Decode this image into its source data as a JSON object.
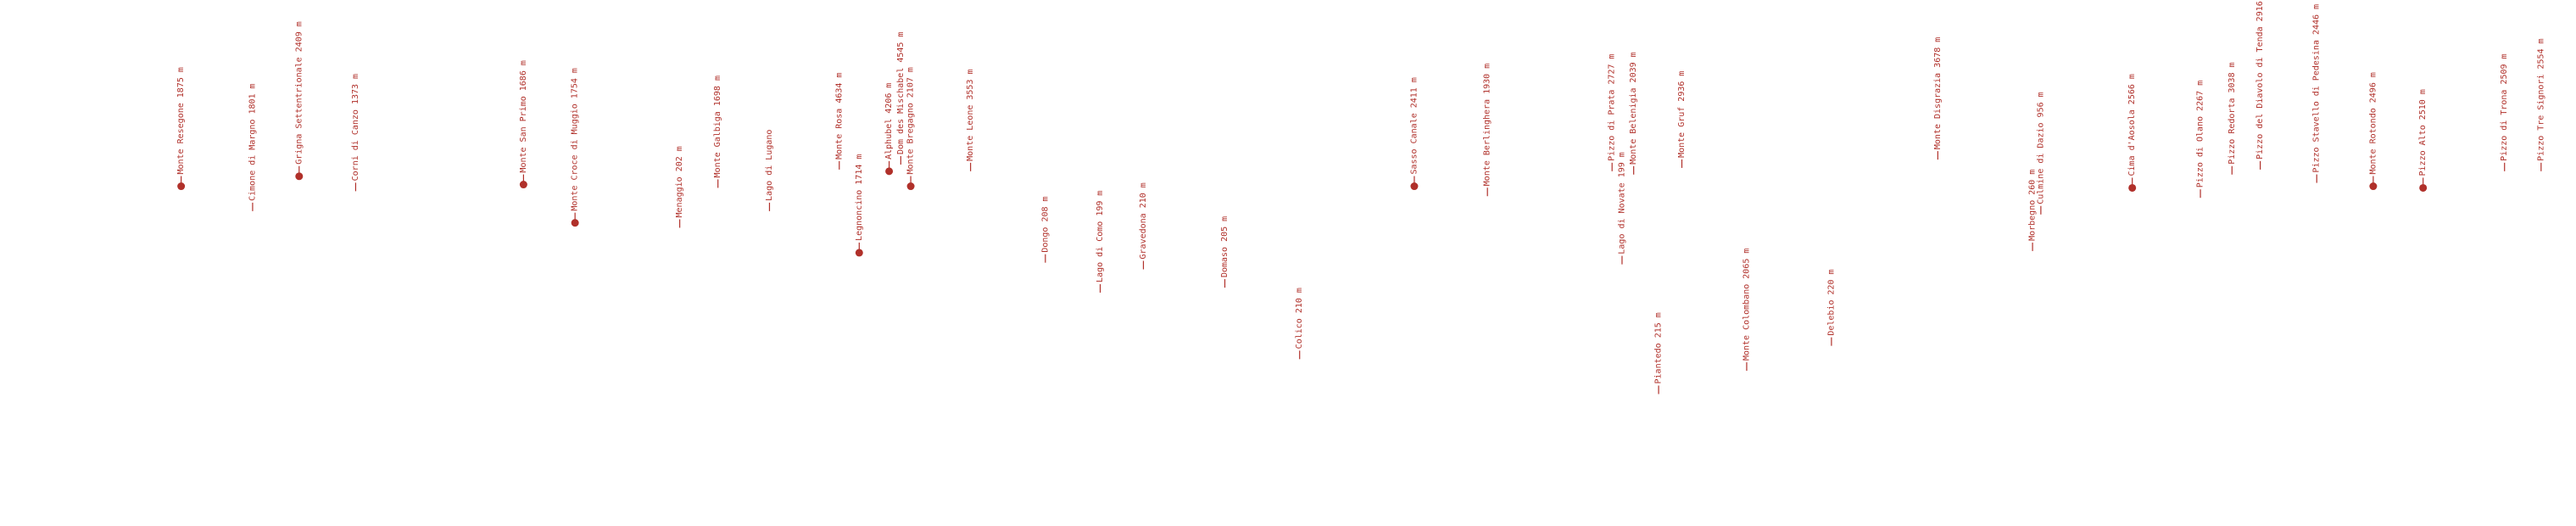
{
  "labels": [
    {
      "text": "Monte Resegone 1875 m"
    },
    {
      "text": "Cimone di Margno 1801 m"
    },
    {
      "text": "Grigna Settentrionale 2409 m"
    },
    {
      "text": "Corni di Canzo 1373 m"
    },
    {
      "text": "Monte San Primo 1686 m"
    },
    {
      "text": "Monte Croce di Muggio 1754 m"
    },
    {
      "text": "Menaggio 202 m"
    },
    {
      "text": "Monte Galbiga 1698 m"
    },
    {
      "text": "Lago di Lugano"
    },
    {
      "text": "Monte Rosa 4634 m"
    },
    {
      "text": "Legnoncino 1714 m"
    },
    {
      "text": "Alphubel 4206 m"
    },
    {
      "text": "Dom des Mischabel 4545 m"
    },
    {
      "text": "Monte Bregagno 2107 m"
    },
    {
      "text": "Monte Leone 3553 m"
    },
    {
      "text": "Dongo 208 m"
    },
    {
      "text": "Lago di Como 199 m"
    },
    {
      "text": "Gravedona 210 m"
    },
    {
      "text": "Domaso 205 m"
    },
    {
      "text": "Colico 210 m"
    },
    {
      "text": "Sasso Canale 2411 m"
    },
    {
      "text": "Monte Berlinghera 1930 m"
    },
    {
      "text": "Pizzo di Prata 2727 m"
    },
    {
      "text": "Lago di Novate 199 m"
    },
    {
      "text": "Monte Belenigia 2039 m"
    },
    {
      "text": "Piantedo 215 m"
    },
    {
      "text": "Monte Gruf 2936 m"
    },
    {
      "text": "Monte Colombano 2065 m"
    },
    {
      "text": "Delebio 220 m"
    },
    {
      "text": "Monte Disgrazia 3678 m"
    },
    {
      "text": "Morbegno 260 m"
    },
    {
      "text": "Culmine di Dazio 956 m"
    },
    {
      "text": "Cima d'Aosola 2566 m"
    },
    {
      "text": "Pizzo di Olano 2267 m"
    },
    {
      "text": "Pizzo Redorta 3038 m"
    },
    {
      "text": "Pizzo del Diavolo di Tenda 2916 m"
    },
    {
      "text": "Pizzo Stavello di Pedesina 2446 m"
    },
    {
      "text": "Monte Rotondo 2496 m"
    },
    {
      "text": "Pizzo Alto 2510 m"
    },
    {
      "text": "Pizzo di Trona 2509 m"
    },
    {
      "text": "Pizzo Tre Signori 2554 m"
    }
  ]
}
